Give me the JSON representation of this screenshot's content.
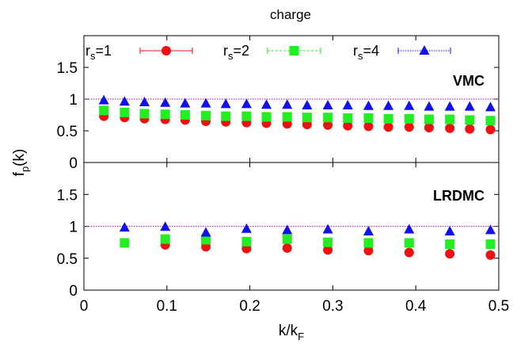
{
  "chart_data": {
    "type": "scatter",
    "title": "charge",
    "xlabel": "k/k",
    "xlabel_sub": "F",
    "ylabel": "f",
    "ylabel_sub": "p",
    "ylabel_suffix": "(k)",
    "xlim": [
      0,
      0.5
    ],
    "xticks": [
      "0",
      "0.1",
      "0.2",
      "0.3",
      "0.4",
      "0.5"
    ],
    "ylim": [
      0,
      2
    ],
    "yticks": [
      "0",
      "0.5",
      "1",
      "1.5"
    ],
    "reference_line": 1,
    "legend": {
      "placement": "top",
      "entries": [
        {
          "prefix": "r",
          "sub": "s",
          "suffix": "=1"
        },
        {
          "prefix": "r",
          "sub": "s",
          "suffix": "=2"
        },
        {
          "prefix": "r",
          "sub": "s",
          "suffix": "=4"
        }
      ]
    },
    "colors": {
      "rs1": "#ee1111",
      "rs2": "#22ee22",
      "rs4": "#1111ee",
      "reference": "#cc33cc"
    },
    "panels": [
      {
        "label": "VMC",
        "series": [
          {
            "key": "rs1",
            "marker": "circle",
            "x": [
              0.024,
              0.049,
              0.073,
              0.098,
              0.122,
              0.147,
              0.171,
              0.196,
              0.22,
              0.245,
              0.269,
              0.294,
              0.318,
              0.343,
              0.367,
              0.392,
              0.416,
              0.441,
              0.465,
              0.49
            ],
            "y": [
              0.73,
              0.71,
              0.69,
              0.68,
              0.67,
              0.65,
              0.64,
              0.63,
              0.62,
              0.61,
              0.6,
              0.59,
              0.58,
              0.57,
              0.56,
              0.56,
              0.55,
              0.54,
              0.53,
              0.52
            ]
          },
          {
            "key": "rs2",
            "marker": "square",
            "x": [
              0.024,
              0.049,
              0.073,
              0.098,
              0.122,
              0.147,
              0.171,
              0.196,
              0.22,
              0.245,
              0.269,
              0.294,
              0.318,
              0.343,
              0.367,
              0.392,
              0.416,
              0.441,
              0.465,
              0.49
            ],
            "y": [
              0.82,
              0.79,
              0.77,
              0.76,
              0.75,
              0.74,
              0.73,
              0.73,
              0.72,
              0.72,
              0.71,
              0.71,
              0.7,
              0.7,
              0.69,
              0.69,
              0.68,
              0.68,
              0.67,
              0.66
            ]
          },
          {
            "key": "rs4",
            "marker": "triangle",
            "x": [
              0.024,
              0.049,
              0.073,
              0.098,
              0.122,
              0.147,
              0.171,
              0.196,
              0.22,
              0.245,
              0.269,
              0.294,
              0.318,
              0.343,
              0.367,
              0.392,
              0.416,
              0.441,
              0.465,
              0.49
            ],
            "y": [
              0.98,
              0.96,
              0.95,
              0.94,
              0.93,
              0.93,
              0.92,
              0.92,
              0.91,
              0.91,
              0.9,
              0.9,
              0.9,
              0.89,
              0.89,
              0.89,
              0.88,
              0.88,
              0.88,
              0.87
            ]
          }
        ]
      },
      {
        "label": "LRDMC",
        "series": [
          {
            "key": "rs1",
            "marker": "circle",
            "x": [
              0.098,
              0.147,
              0.196,
              0.245,
              0.294,
              0.343,
              0.392,
              0.441,
              0.49
            ],
            "y": [
              0.71,
              0.68,
              0.65,
              0.66,
              0.63,
              0.62,
              0.59,
              0.57,
              0.55
            ]
          },
          {
            "key": "rs2",
            "marker": "square",
            "x": [
              0.049,
              0.098,
              0.147,
              0.196,
              0.245,
              0.294,
              0.343,
              0.392,
              0.441,
              0.49
            ],
            "y": [
              0.74,
              0.8,
              0.79,
              0.76,
              0.8,
              0.75,
              0.74,
              0.74,
              0.72,
              0.72
            ]
          },
          {
            "key": "rs4",
            "marker": "triangle",
            "x": [
              0.049,
              0.098,
              0.147,
              0.196,
              0.245,
              0.294,
              0.343,
              0.392,
              0.441,
              0.49
            ],
            "y": [
              0.98,
              0.99,
              0.9,
              0.96,
              0.94,
              0.95,
              0.92,
              0.95,
              0.92,
              0.94
            ]
          }
        ]
      }
    ]
  }
}
